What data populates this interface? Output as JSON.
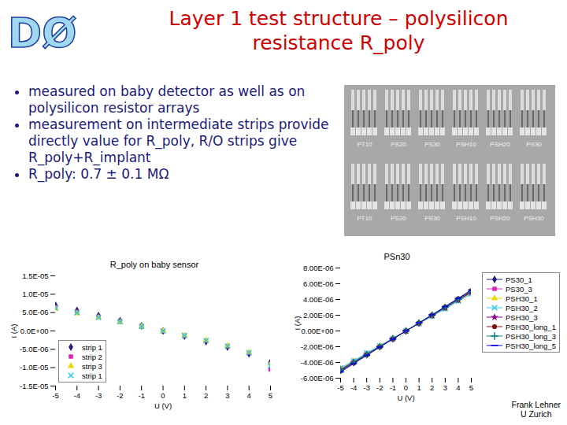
{
  "logo": "DØ",
  "title": [
    "Layer 1 test structure – polysilicon",
    "resistance R_poly"
  ],
  "bullets": [
    "measured on baby detector as well as on polysilicon resistor arrays",
    "measurement on intermediate strips provide directly value for R_poly, R/O strips give R_poly+R_implant",
    "R_poly: 0.7 ± 0.1 MΩ"
  ],
  "photo_labels": [
    [
      "PT10",
      "PS20",
      "PS30",
      "PSH10",
      "PSH20",
      "PS30"
    ],
    [
      "PT10",
      "PS20",
      "PS30",
      "PSH10",
      "PSH20",
      "PSH30"
    ]
  ],
  "author": [
    "Frank Lehner",
    "U Zurich"
  ],
  "chart_data": [
    {
      "type": "scatter",
      "title": "R_poly on baby sensor",
      "x_label": "U (V)",
      "y_label": "I (A)",
      "legend": "lower left",
      "x": [
        -5,
        -4,
        -3,
        -2,
        -1,
        0,
        1,
        2,
        3,
        4,
        5
      ],
      "xlim": [
        -5,
        5
      ],
      "xticks": [
        -5,
        -4,
        -3,
        -2,
        -1,
        0,
        1,
        2,
        3,
        4,
        5
      ],
      "ylim": [
        -1.5e-05,
        1.5e-05
      ],
      "yticks": [
        {
          "value": -1.5e-05,
          "label": "-1.5E-05"
        },
        {
          "value": -1e-05,
          "label": "-1.0E-05"
        },
        {
          "value": -5e-06,
          "label": "-5.0E-06"
        },
        {
          "value": 0,
          "label": "0.0E+00"
        },
        {
          "value": 5e-06,
          "label": "5.0E-06"
        },
        {
          "value": 1e-05,
          "label": "1.0E-05"
        },
        {
          "value": 1.5e-05,
          "label": "1.5E-05"
        }
      ],
      "series": [
        {
          "name": "strip 1",
          "color": "#1f1f7a",
          "marker": "diamond",
          "values": [
            7e-06,
            5.6e-06,
            4.2e-06,
            2.8e-06,
            1.4e-06,
            0,
            -1.4e-06,
            -2.9e-06,
            -4.4e-06,
            -6.2e-06,
            -8.5e-06
          ]
        },
        {
          "name": "strip 2",
          "color": "#e020c0",
          "marker": "square",
          "values": [
            6.5e-06,
            5.2e-06,
            3.9e-06,
            2.6e-06,
            1.3e-06,
            0,
            -1.3e-06,
            -2.7e-06,
            -4.2e-06,
            -6e-06,
            -1.05e-05
          ]
        },
        {
          "name": "strip 3",
          "color": "#e8d800",
          "marker": "triangle",
          "values": [
            6e-06,
            4.8e-06,
            3.6e-06,
            2.4e-06,
            1.2e-06,
            0,
            -1.2e-06,
            -2.5e-06,
            -4e-06,
            -5.8e-06,
            -9e-06
          ]
        },
        {
          "name": "strip 1",
          "color": "#30c8e8",
          "marker": "x",
          "values": [
            6.2e-06,
            5e-06,
            3.7e-06,
            2.5e-06,
            1.25e-06,
            0,
            -1.25e-06,
            -2.6e-06,
            -4.1e-06,
            -5.9e-06,
            -9.5e-06
          ]
        }
      ]
    },
    {
      "type": "line",
      "title": "PSn30",
      "x_label": "U (V)",
      "y_label": "I (A)",
      "legend": "right",
      "x": [
        -5,
        -4,
        -3,
        -2,
        -1,
        0,
        1,
        2,
        3,
        4,
        5
      ],
      "xlim": [
        -5,
        5
      ],
      "xticks": [
        -5,
        -4,
        -3,
        -2,
        -1,
        0,
        1,
        2,
        3,
        4,
        5
      ],
      "ylim": [
        -6e-06,
        8e-06
      ],
      "yticks": [
        {
          "value": -6e-06,
          "label": "-6.00E-06"
        },
        {
          "value": -4e-06,
          "label": "-4.00E-06"
        },
        {
          "value": -2e-06,
          "label": "-2.00E-06"
        },
        {
          "value": 0,
          "label": "0.00E+00"
        },
        {
          "value": 2e-06,
          "label": "2.00E-06"
        },
        {
          "value": 4e-06,
          "label": "4.00E-06"
        },
        {
          "value": 6e-06,
          "label": "6.00E-06"
        },
        {
          "value": 8e-06,
          "label": "8.00E-06"
        }
      ],
      "series": [
        {
          "name": "PS30_1",
          "color": "#1f1f7a",
          "marker": "diamond",
          "values": [
            -5e-06,
            -4e-06,
            -3e-06,
            -2e-06,
            -1e-06,
            0,
            1e-06,
            2e-06,
            3e-06,
            4e-06,
            5e-06
          ]
        },
        {
          "name": "PS30_3",
          "color": "#e020c0",
          "marker": "square",
          "values": [
            -4.9e-06,
            -3.9e-06,
            -2.9e-06,
            -1.95e-06,
            -9.8e-07,
            0,
            9.8e-07,
            1.95e-06,
            2.9e-06,
            3.9e-06,
            4.9e-06
          ]
        },
        {
          "name": "PSH30_1",
          "color": "#e8d800",
          "marker": "triangle",
          "values": [
            -4.8e-06,
            -3.85e-06,
            -2.9e-06,
            -1.9e-06,
            -9.5e-07,
            0,
            9.5e-07,
            1.9e-06,
            2.9e-06,
            3.85e-06,
            4.8e-06
          ]
        },
        {
          "name": "PSH30_2",
          "color": "#30c8e8",
          "marker": "x",
          "values": [
            -4.7e-06,
            -3.8e-06,
            -2.8e-06,
            -1.9e-06,
            -9.4e-07,
            0,
            9.4e-07,
            1.9e-06,
            2.8e-06,
            3.8e-06,
            4.7e-06
          ]
        },
        {
          "name": "PSH30_3",
          "color": "#800080",
          "marker": "star",
          "values": [
            -4.9e-06,
            -3.95e-06,
            -2.95e-06,
            -1.97e-06,
            -9.9e-07,
            0,
            9.9e-07,
            1.97e-06,
            2.95e-06,
            3.95e-06,
            4.9e-06
          ]
        },
        {
          "name": "PSH30_long_1",
          "color": "#801010",
          "marker": "circle",
          "values": [
            -5.1e-06,
            -4.1e-06,
            -3.05e-06,
            -2.03e-06,
            -1.02e-06,
            0,
            1.02e-06,
            2.03e-06,
            3.05e-06,
            4.1e-06,
            5.1e-06
          ]
        },
        {
          "name": "PSH30_long_3",
          "color": "#008080",
          "marker": "plus",
          "values": [
            -5e-06,
            -4e-06,
            -3e-06,
            -2e-06,
            -1e-06,
            0,
            1e-06,
            2e-06,
            3e-06,
            4e-06,
            5e-06
          ]
        },
        {
          "name": "PSH30_long_5",
          "color": "#0000e0",
          "marker": "dash",
          "values": [
            -5.2e-06,
            -4.15e-06,
            -3.1e-06,
            -2.05e-06,
            -1.03e-06,
            0,
            1.03e-06,
            2.05e-06,
            3.1e-06,
            4.15e-06,
            5.2e-06
          ]
        }
      ]
    }
  ]
}
